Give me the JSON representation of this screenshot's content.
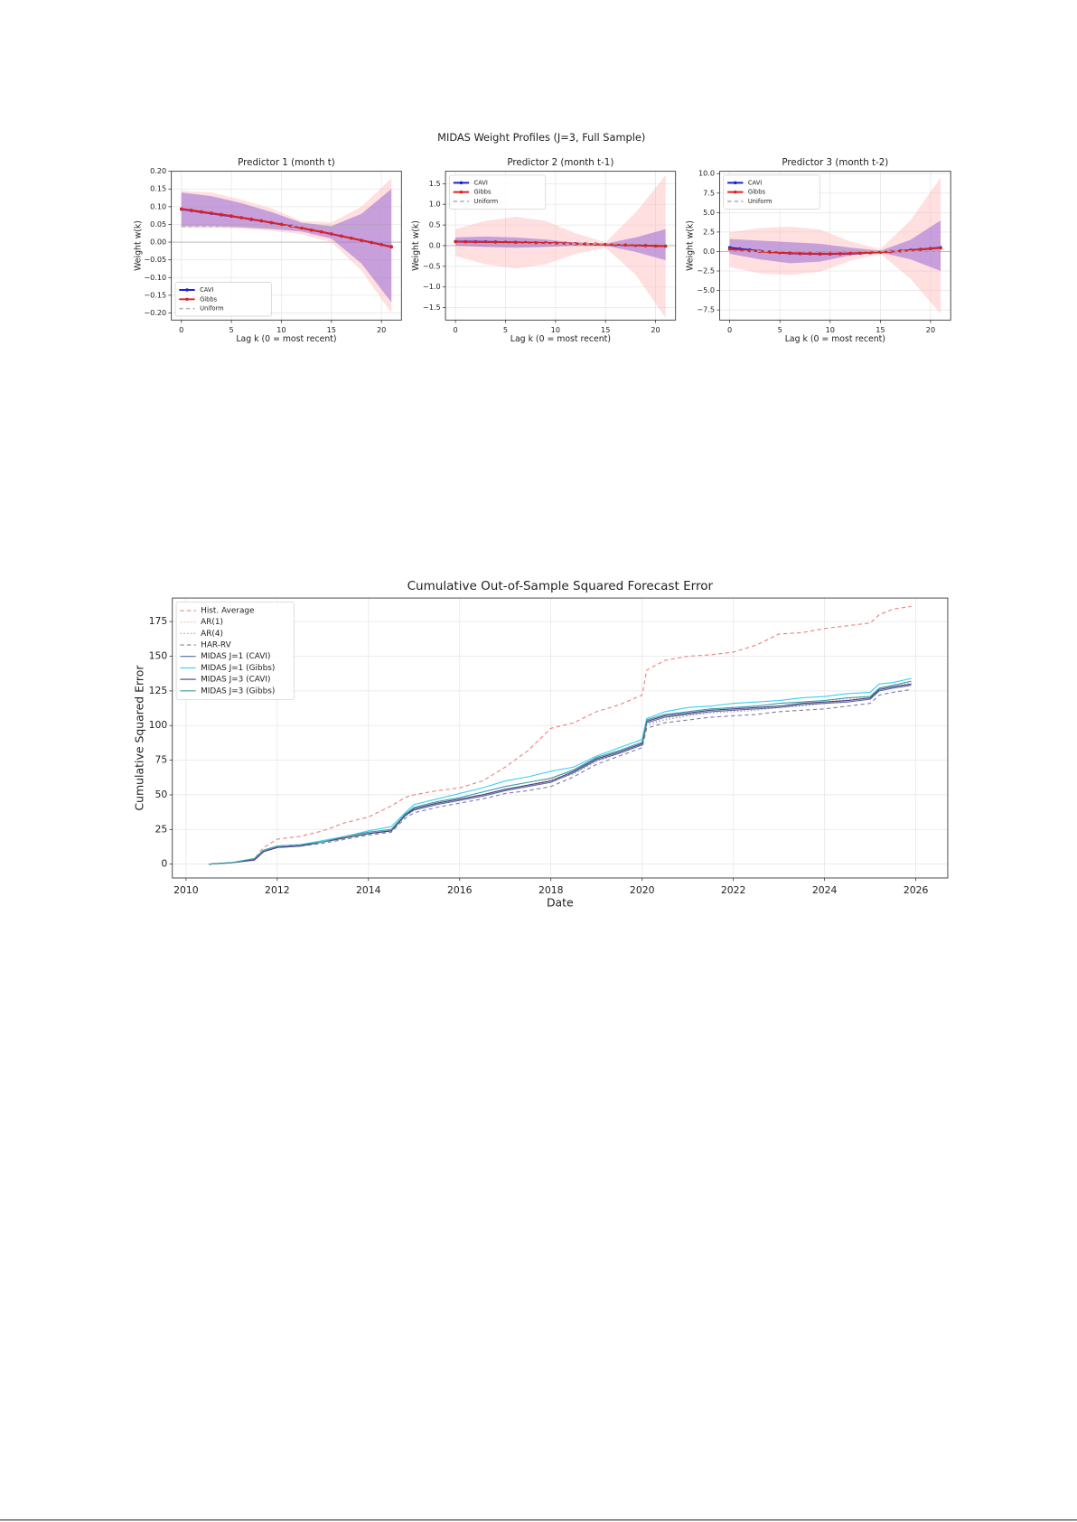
{
  "figure": {
    "title": "MIDAS Weight Profiles (J=3, Full Sample)"
  },
  "chart_data": [
    {
      "type": "line",
      "title": "Predictor 1 (month t)",
      "x_label": "Lag k (0 = most recent)",
      "y_label": "Weight w(k)",
      "x": [
        0,
        1,
        2,
        3,
        4,
        5,
        6,
        7,
        8,
        9,
        10,
        11,
        12,
        13,
        14,
        15,
        16,
        17,
        18,
        19,
        20,
        21
      ],
      "series": [
        {
          "name": "CAVI",
          "color": "#1f1fd0",
          "marker": true,
          "values": [
            0.093,
            0.089,
            0.085,
            0.081,
            0.077,
            0.073,
            0.069,
            0.064,
            0.06,
            0.055,
            0.05,
            0.045,
            0.04,
            0.034,
            0.029,
            0.023,
            0.017,
            0.011,
            0.005,
            -0.001,
            -0.007,
            -0.013
          ]
        },
        {
          "name": "Gibbs",
          "color": "#e02020",
          "marker": true,
          "values": [
            0.094,
            0.09,
            0.086,
            0.082,
            0.078,
            0.074,
            0.069,
            0.065,
            0.06,
            0.055,
            0.05,
            0.045,
            0.04,
            0.034,
            0.029,
            0.023,
            0.017,
            0.011,
            0.005,
            -0.001,
            -0.007,
            -0.014
          ]
        },
        {
          "name": "Uniform",
          "color": "#b0b0b0",
          "dash": "dashed",
          "x": [
            0,
            21
          ],
          "values": [
            0.045,
            0.045
          ]
        }
      ],
      "bands": [
        {
          "color": "#ffb0b0",
          "x": [
            0,
            3,
            6,
            9,
            12,
            15,
            18,
            21
          ],
          "lower": [
            0.04,
            0.04,
            0.038,
            0.032,
            0.022,
            0.0,
            -0.08,
            -0.2
          ],
          "upper": [
            0.145,
            0.14,
            0.12,
            0.095,
            0.06,
            0.055,
            0.1,
            0.18
          ]
        },
        {
          "color": "#9060d8",
          "x": [
            0,
            3,
            6,
            9,
            12,
            15,
            18,
            21
          ],
          "lower": [
            0.045,
            0.045,
            0.042,
            0.037,
            0.03,
            0.01,
            -0.06,
            -0.17
          ],
          "upper": [
            0.14,
            0.13,
            0.11,
            0.085,
            0.055,
            0.045,
            0.08,
            0.15
          ]
        }
      ],
      "xlim": [
        -1,
        22
      ],
      "xticks": [
        0,
        5,
        10,
        15,
        20
      ],
      "ylim": [
        -0.22,
        0.2
      ],
      "yticks": [
        {
          "value": -0.2,
          "label": "−0.20"
        },
        {
          "value": -0.15,
          "label": "−0.15"
        },
        {
          "value": -0.1,
          "label": "−0.10"
        },
        {
          "value": -0.05,
          "label": "−0.05"
        },
        {
          "value": 0,
          "label": "0.00"
        },
        0.05,
        {
          "value": 0.1,
          "label": "0.10"
        },
        0.15,
        {
          "value": 0.2,
          "label": "0.20"
        }
      ],
      "grid": true,
      "zero_line": true,
      "legend": "lower left"
    },
    {
      "type": "line",
      "title": "Predictor 2 (month t-1)",
      "x_label": "Lag k (0 = most recent)",
      "y_label": "Weight w(k)",
      "x": [
        0,
        1,
        2,
        3,
        4,
        5,
        6,
        7,
        8,
        9,
        10,
        11,
        12,
        13,
        14,
        15,
        16,
        17,
        18,
        19,
        20,
        21
      ],
      "series": [
        {
          "name": "CAVI",
          "color": "#1f1fd0",
          "marker": true,
          "values": [
            0.1,
            0.098,
            0.095,
            0.092,
            0.089,
            0.085,
            0.081,
            0.077,
            0.072,
            0.067,
            0.062,
            0.056,
            0.05,
            0.044,
            0.037,
            0.03,
            0.023,
            0.016,
            0.009,
            0.002,
            -0.005,
            -0.012
          ]
        },
        {
          "name": "Gibbs",
          "color": "#e02020",
          "marker": true,
          "values": [
            0.095,
            0.093,
            0.091,
            0.088,
            0.085,
            0.082,
            0.078,
            0.074,
            0.07,
            0.065,
            0.06,
            0.055,
            0.049,
            0.043,
            0.037,
            0.031,
            0.024,
            0.017,
            0.01,
            0.003,
            -0.004,
            -0.011
          ]
        },
        {
          "name": "Uniform",
          "color": "#b0b0b0",
          "dash": "dashed",
          "x": [
            0,
            21
          ],
          "values": [
            0.045,
            0.045
          ]
        }
      ],
      "bands": [
        {
          "color": "#ffb0b0",
          "x": [
            0,
            3,
            6,
            9,
            12,
            15,
            18,
            21
          ],
          "lower": [
            -0.25,
            -0.45,
            -0.55,
            -0.45,
            -0.2,
            -0.05,
            -0.7,
            -1.75
          ],
          "upper": [
            0.4,
            0.6,
            0.7,
            0.6,
            0.3,
            0.08,
            0.8,
            1.7
          ]
        },
        {
          "color": "#9060d8",
          "x": [
            0,
            3,
            6,
            9,
            12,
            15,
            18,
            21
          ],
          "lower": [
            0.0,
            -0.03,
            -0.05,
            -0.03,
            0.0,
            0.0,
            -0.15,
            -0.35
          ],
          "upper": [
            0.2,
            0.22,
            0.2,
            0.15,
            0.07,
            0.05,
            0.2,
            0.4
          ]
        }
      ],
      "xlim": [
        -1,
        22
      ],
      "xticks": [
        0,
        5,
        10,
        15,
        20
      ],
      "ylim": [
        -1.8,
        1.8
      ],
      "yticks": [
        {
          "value": -1.5,
          "label": "−1.5"
        },
        {
          "value": -1,
          "label": "−1.0"
        },
        {
          "value": -0.5,
          "label": "−0.5"
        },
        {
          "value": 0,
          "label": "0.0"
        },
        0.5,
        {
          "value": 1,
          "label": "1.0"
        },
        1.5
      ],
      "grid": true,
      "zero_line": true,
      "legend": "upper left"
    },
    {
      "type": "line",
      "title": "Predictor 3 (month t-2)",
      "x_label": "Lag k (0 = most recent)",
      "y_label": "Weight w(k)",
      "x": [
        0,
        1,
        2,
        3,
        4,
        5,
        6,
        7,
        8,
        9,
        10,
        11,
        12,
        13,
        14,
        15,
        16,
        17,
        18,
        19,
        20,
        21
      ],
      "series": [
        {
          "name": "CAVI",
          "color": "#1f1fd0",
          "marker": true,
          "values": [
            0.5,
            0.35,
            0.2,
            0.05,
            -0.05,
            -0.15,
            -0.22,
            -0.27,
            -0.3,
            -0.32,
            -0.32,
            -0.3,
            -0.27,
            -0.22,
            -0.16,
            -0.09,
            -0.01,
            0.08,
            0.18,
            0.28,
            0.39,
            0.5
          ]
        },
        {
          "name": "Gibbs",
          "color": "#e02020",
          "marker": true,
          "values": [
            0.3,
            0.2,
            0.1,
            0.0,
            -0.08,
            -0.15,
            -0.2,
            -0.24,
            -0.27,
            -0.28,
            -0.28,
            -0.27,
            -0.24,
            -0.2,
            -0.15,
            -0.09,
            -0.02,
            0.06,
            0.15,
            0.25,
            0.35,
            0.45
          ]
        },
        {
          "name": "Uniform",
          "color": "#b0b0b0",
          "dash": "dashed",
          "x": [
            0,
            21
          ],
          "values": [
            0.045,
            0.045
          ]
        }
      ],
      "bands": [
        {
          "color": "#ffb0b0",
          "x": [
            0,
            3,
            6,
            9,
            12,
            15,
            18,
            21
          ],
          "lower": [
            -2,
            -2.8,
            -3,
            -2.6,
            -1.2,
            -0.3,
            -3.5,
            -8
          ],
          "upper": [
            2.5,
            3,
            3.2,
            2.8,
            1.3,
            0.3,
            4,
            9.5
          ]
        },
        {
          "color": "#9060d8",
          "x": [
            0,
            3,
            6,
            9,
            12,
            15,
            18,
            21
          ],
          "lower": [
            -0.3,
            -1,
            -1.5,
            -1.3,
            -0.5,
            -0.1,
            -1,
            -2.5
          ],
          "upper": [
            1.6,
            1.4,
            1.2,
            1,
            0.5,
            0.1,
            1.5,
            4
          ]
        }
      ],
      "xlim": [
        -1,
        22
      ],
      "xticks": [
        0,
        5,
        10,
        15,
        20
      ],
      "ylim": [
        -8.8,
        10.3
      ],
      "yticks": [
        {
          "value": -7.5,
          "label": "−7.5"
        },
        {
          "value": -5,
          "label": "−5.0"
        },
        {
          "value": -2.5,
          "label": "−2.5"
        },
        {
          "value": 0,
          "label": "0.0"
        },
        2.5,
        {
          "value": 5,
          "label": "5.0"
        },
        7.5,
        {
          "value": 10,
          "label": "10.0"
        }
      ],
      "grid": true,
      "zero_line": true,
      "legend": "upper left"
    },
    {
      "type": "line",
      "title": "Cumulative Out-of-Sample Squared Forecast Error",
      "x_label": "Date",
      "y_label": "Cumulative Squared Error",
      "x": [
        2010.5,
        2011,
        2011.5,
        2011.7,
        2012,
        2012.5,
        2013,
        2013.5,
        2014,
        2014.5,
        2014.8,
        2015,
        2015.5,
        2016,
        2016.5,
        2017,
        2017.5,
        2018,
        2018.5,
        2019,
        2019.5,
        2020,
        2020.1,
        2020.5,
        2021,
        2021.5,
        2022,
        2022.5,
        2023,
        2023.5,
        2024,
        2024.5,
        2025,
        2025.2,
        2025.5,
        2025.9
      ],
      "series": [
        {
          "name": "Hist. Average",
          "color": "#f08080",
          "dash": "dashed",
          "values": [
            0,
            1,
            4,
            12,
            18,
            20,
            24,
            30,
            34,
            42,
            48,
            50,
            53,
            55,
            60,
            70,
            82,
            98,
            102,
            110,
            115,
            122,
            140,
            147,
            150,
            151,
            153,
            158,
            166,
            167,
            170,
            172,
            174,
            180,
            184,
            186
          ]
        },
        {
          "name": "AR(1)",
          "color": "#f2c08a",
          "dash": "dotted",
          "values": [
            0,
            1,
            3,
            9,
            12,
            13,
            16,
            19,
            22,
            25,
            35,
            40,
            44,
            47,
            50,
            54,
            57,
            61,
            66,
            75,
            81,
            87,
            101,
            105,
            108,
            110,
            111,
            112,
            114,
            115,
            117,
            119,
            121,
            127,
            129,
            131
          ]
        },
        {
          "name": "AR(4)",
          "color": "#aaaaaa",
          "dash": "dotted",
          "values": [
            0,
            1,
            3,
            9,
            12,
            13,
            16,
            19,
            22,
            24,
            34,
            39,
            43,
            46,
            49,
            53,
            56,
            60,
            65,
            74,
            80,
            86,
            100,
            104,
            107,
            109,
            110,
            111,
            113,
            114,
            116,
            118,
            120,
            126,
            128,
            130
          ]
        },
        {
          "name": "HAR-RV",
          "color": "#8080a0",
          "dash": "dashed",
          "values": [
            0,
            1,
            3,
            9,
            12,
            13,
            15,
            18,
            21,
            23,
            33,
            37,
            41,
            44,
            47,
            51,
            53,
            56,
            63,
            72,
            78,
            84,
            98,
            102,
            104,
            106,
            107,
            108,
            110,
            111,
            112,
            114,
            116,
            122,
            124,
            126
          ]
        },
        {
          "name": "MIDAS J=1 (CAVI)",
          "color": "#5a6aa0",
          "values": [
            0,
            1,
            3,
            9,
            12,
            13,
            16,
            19,
            22,
            24,
            35,
            39,
            43,
            46,
            49,
            53,
            56,
            59,
            66,
            75,
            80,
            86,
            102,
            106,
            108,
            110,
            111,
            112,
            113,
            115,
            116,
            117,
            119,
            125,
            127,
            129
          ]
        },
        {
          "name": "MIDAS J=1 (Gibbs)",
          "color": "#3ad0f0",
          "values": [
            0,
            1,
            4,
            10,
            13,
            14,
            17,
            20,
            24,
            27,
            37,
            43,
            47,
            51,
            55,
            60,
            63,
            67,
            70,
            78,
            84,
            90,
            105,
            110,
            113,
            114,
            116,
            117,
            118,
            120,
            121,
            123,
            124,
            130,
            131,
            134
          ]
        },
        {
          "name": "MIDAS J=3 (CAVI)",
          "color": "#4b3a8c",
          "values": [
            0,
            1,
            3,
            9,
            12,
            13,
            16,
            19,
            22,
            24,
            35,
            40,
            44,
            47,
            50,
            54,
            57,
            60,
            67,
            76,
            81,
            87,
            103,
            107,
            109,
            111,
            112,
            113,
            114,
            116,
            117,
            118,
            120,
            126,
            128,
            130
          ]
        },
        {
          "name": "MIDAS J=3 (Gibbs)",
          "color": "#3a9c9c",
          "values": [
            0,
            1,
            4,
            10,
            13,
            14,
            16,
            20,
            23,
            25,
            36,
            41,
            45,
            48,
            52,
            56,
            59,
            62,
            68,
            77,
            82,
            88,
            104,
            108,
            110,
            112,
            113,
            114,
            116,
            117,
            118,
            120,
            121,
            127,
            129,
            132
          ]
        }
      ],
      "xlim": [
        2009.7,
        2026.7
      ],
      "xticks": [
        2010,
        2012,
        2014,
        2016,
        2018,
        2020,
        2022,
        2024,
        2026
      ],
      "ylim": [
        -10,
        192
      ],
      "yticks": [
        0,
        25,
        50,
        75,
        100,
        125,
        150,
        175
      ],
      "grid": true,
      "legend": "upper left"
    }
  ]
}
